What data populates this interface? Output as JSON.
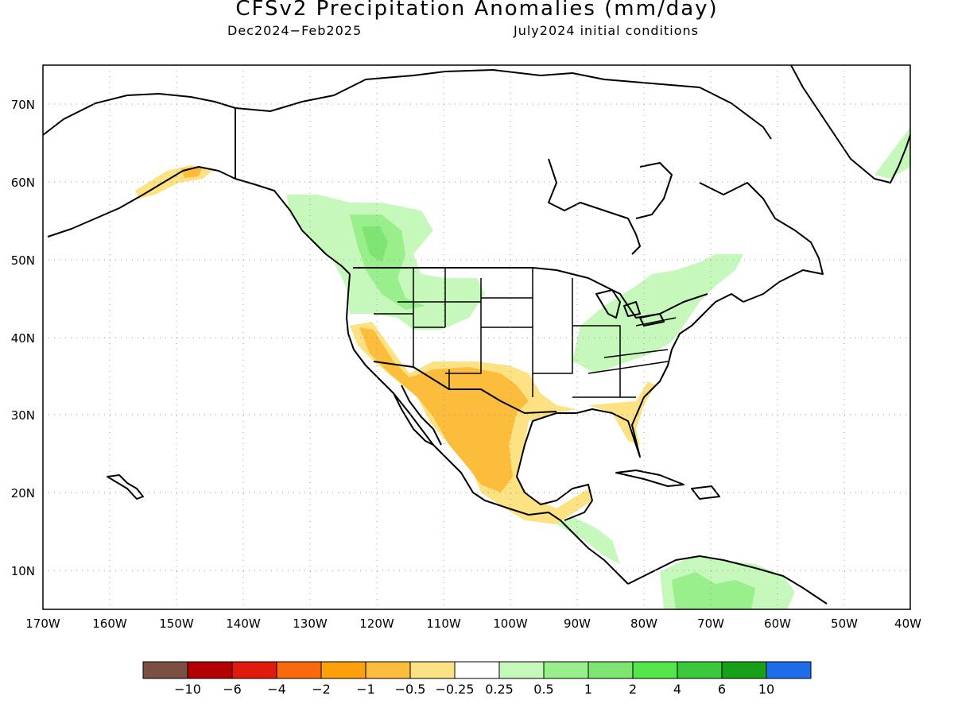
{
  "title": "CFSv2 Precipitation Anomalies (mm/day)",
  "subtitle_left": "Dec2024−Feb2025",
  "subtitle_right": "July2024 initial conditions",
  "map": {
    "lat_labels": [
      "70N",
      "60N",
      "50N",
      "40N",
      "30N",
      "20N",
      "10N"
    ],
    "lon_labels": [
      "170W",
      "160W",
      "150W",
      "140W",
      "130W",
      "120W",
      "110W",
      "100W",
      "90W",
      "80W",
      "70W",
      "60W",
      "50W",
      "40W"
    ],
    "extent": {
      "lon": [
        -170,
        -40
      ],
      "lat": [
        5,
        75
      ]
    },
    "grid": "dotted"
  },
  "colorbar": {
    "colors": [
      "#7b5044",
      "#b40000",
      "#e01a0c",
      "#f86a0c",
      "#fca10c",
      "#fcbd3c",
      "#fce282",
      "#ffffff",
      "#c6f7bb",
      "#99ef8c",
      "#7ee472",
      "#55e64a",
      "#3cc83c",
      "#18a018",
      "#1e6eeb"
    ],
    "labels": [
      "−10",
      "−6",
      "−4",
      "−2",
      "−1",
      "−0.5",
      "−0.25",
      "0.25",
      "0.5",
      "1",
      "2",
      "4",
      "6",
      "10"
    ]
  }
}
